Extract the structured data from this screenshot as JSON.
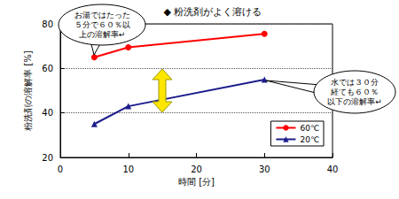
{
  "chart_data": {
    "type": "line",
    "title": "◆ 粉洗剤がよく溶ける",
    "x_label": "時間 [分]",
    "y_label": "粉洗剤の溶解率 [%]",
    "x": [
      5,
      10,
      30
    ],
    "series": [
      {
        "name": "60℃",
        "color": "#ff0000",
        "marker": "circle",
        "line_style": "solid",
        "values": [
          65,
          69.5,
          75.5
        ]
      },
      {
        "name": "20℃",
        "color": "#1c1c8c",
        "marker": "triangle",
        "line_style": "solid",
        "values": [
          35,
          43,
          55
        ]
      }
    ],
    "xlim": [
      0,
      40
    ],
    "xticks": [
      0,
      10,
      20,
      30,
      40
    ],
    "ylim": [
      20,
      80
    ],
    "yticks": [
      20,
      40,
      60,
      80
    ],
    "grid": true,
    "legend": "lower right",
    "annotations": [
      "お湯ではたった\n５分で６０％以\n上の溶解率↵",
      "水では３０分\n経ても６０％\n以下の溶解率↵"
    ]
  }
}
